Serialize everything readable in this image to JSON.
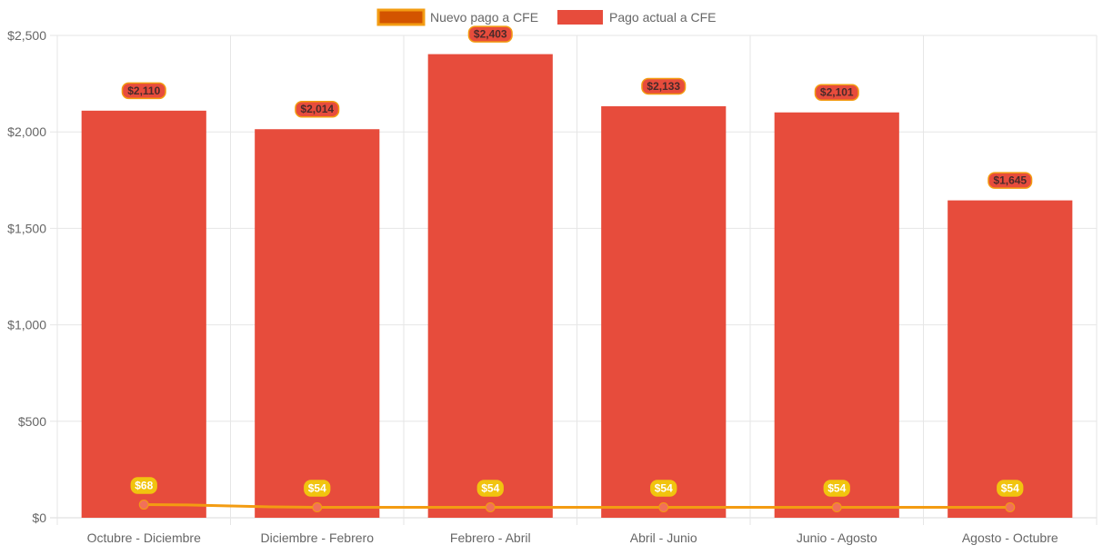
{
  "chart_data": {
    "type": "bar",
    "categories": [
      "Octubre - Diciembre",
      "Diciembre - Febrero",
      "Febrero - Abril",
      "Abril - Junio",
      "Junio - Agosto",
      "Agosto - Octubre"
    ],
    "series": [
      {
        "name": "Nuevo pago a CFE",
        "type": "line",
        "values": [
          68,
          54,
          54,
          54,
          54,
          54
        ],
        "labels": [
          "$68",
          "$54",
          "$54",
          "$54",
          "$54",
          "$54"
        ],
        "color": "#f39c12",
        "legend_fill": "#d35400",
        "point_color": "#f1705a",
        "label_bg": "#f1c40f"
      },
      {
        "name": "Pago actual a CFE",
        "type": "bar",
        "values": [
          2110,
          2014,
          2403,
          2133,
          2101,
          1645
        ],
        "labels": [
          "$2,110",
          "$2,014",
          "$2,403",
          "$2,133",
          "$2,101",
          "$1,645"
        ],
        "color": "#e74c3c",
        "label_bg": "#e74c3c",
        "label_border": "#f39c12",
        "label_text": "#4a2a2a"
      }
    ],
    "y_ticks": [
      0,
      500,
      1000,
      1500,
      2000,
      2500
    ],
    "y_tick_labels": [
      "$0",
      "$500",
      "$1,000",
      "$1,500",
      "$2,000",
      "$2,500"
    ],
    "ylim": [
      0,
      2500
    ],
    "grid": true,
    "legend_position": "top-center",
    "title": "",
    "xlabel": "",
    "ylabel": ""
  }
}
